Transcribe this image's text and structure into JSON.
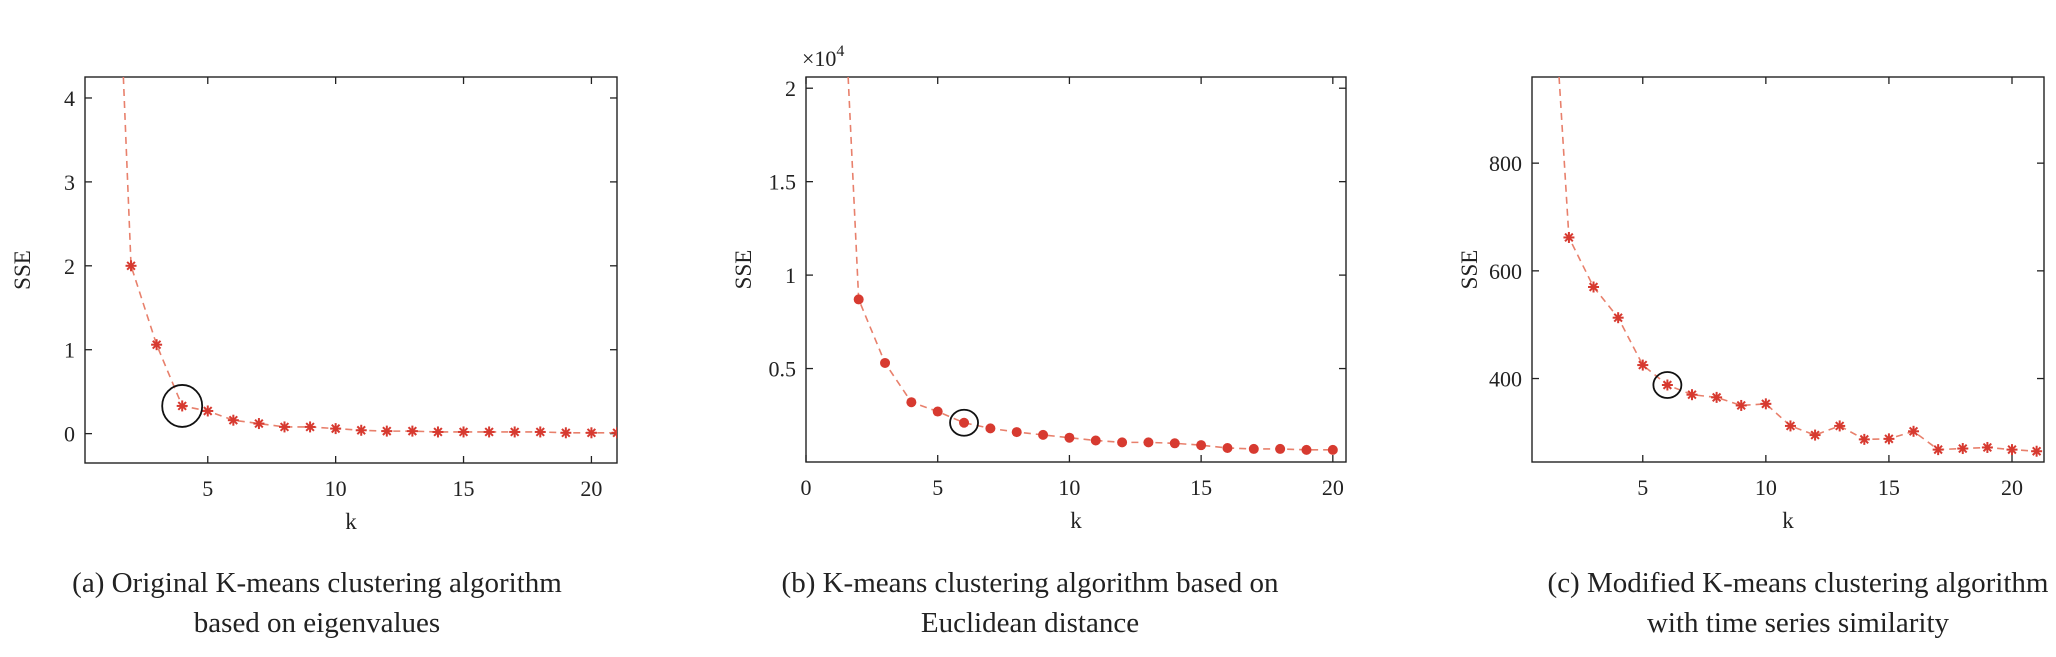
{
  "colors": {
    "series": "#d73a30",
    "line": "#e8806c",
    "axis": "#222222",
    "highlight": "#111111"
  },
  "chart_data": [
    {
      "type": "line",
      "marker": "asterisk",
      "xlabel": "k",
      "ylabel": "SSE",
      "caption_lines": [
        "(a) Original K-means clustering algorithm",
        "based on eigenvalues"
      ],
      "xlim": [
        0.2,
        21
      ],
      "ylim": [
        -0.35,
        4.25
      ],
      "xticks": [
        5,
        10,
        15,
        20
      ],
      "xtick_labels": [
        "5",
        "10",
        "15",
        "20"
      ],
      "yticks": [
        0,
        1,
        2,
        3,
        4
      ],
      "ytick_labels": [
        "0",
        "1",
        "2",
        "3",
        "4"
      ],
      "exponent_label": "",
      "exponent_power": "",
      "grid": false,
      "x": [
        1.7,
        2,
        3,
        4,
        5,
        6,
        7,
        8,
        9,
        10,
        11,
        12,
        13,
        14,
        15,
        16,
        17,
        18,
        19,
        20,
        21
      ],
      "y": [
        4.25,
        2.0,
        1.06,
        0.33,
        0.27,
        0.16,
        0.12,
        0.08,
        0.08,
        0.06,
        0.04,
        0.03,
        0.03,
        0.02,
        0.02,
        0.02,
        0.02,
        0.02,
        0.01,
        0.01,
        0.01
      ],
      "highlight_k": 4,
      "highlight_value": 0.33
    },
    {
      "type": "line",
      "marker": "dot",
      "xlabel": "k",
      "ylabel": "SSE",
      "caption_lines": [
        "(b) K-means clustering algorithm based on",
        "Euclidean distance"
      ],
      "xlim": [
        0,
        20.5
      ],
      "ylim": [
        0,
        2.06
      ],
      "xticks": [
        0,
        5,
        10,
        15,
        20
      ],
      "xtick_labels": [
        "0",
        "5",
        "10",
        "15",
        "20"
      ],
      "yticks": [
        0.5,
        1.0,
        1.5,
        2.0
      ],
      "ytick_labels": [
        "0.5",
        "1",
        "1.5",
        "2"
      ],
      "exponent_label": "×10",
      "exponent_power": "4",
      "grid": false,
      "x": [
        1.6,
        2,
        3,
        4,
        5,
        6,
        7,
        8,
        9,
        10,
        11,
        12,
        13,
        14,
        15,
        16,
        17,
        18,
        19,
        20
      ],
      "y": [
        2.06,
        0.87,
        0.53,
        0.32,
        0.27,
        0.21,
        0.18,
        0.16,
        0.145,
        0.13,
        0.115,
        0.105,
        0.105,
        0.1,
        0.09,
        0.075,
        0.07,
        0.07,
        0.065,
        0.065
      ],
      "highlight_k": 6,
      "highlight_value": 0.21
    },
    {
      "type": "line",
      "marker": "asterisk",
      "xlabel": "k",
      "ylabel": "SSE",
      "caption_lines": [
        "(c) Modified K-means clustering algorithm",
        "with time series similarity"
      ],
      "xlim": [
        0.5,
        21.3
      ],
      "ylim": [
        245,
        960
      ],
      "xticks": [
        5,
        10,
        15,
        20
      ],
      "xtick_labels": [
        "5",
        "10",
        "15",
        "20"
      ],
      "yticks": [
        400,
        600,
        800
      ],
      "ytick_labels": [
        "400",
        "600",
        "800"
      ],
      "exponent_label": "",
      "exponent_power": "",
      "grid": false,
      "x": [
        1.6,
        2,
        3,
        4,
        5,
        6,
        7,
        8,
        9,
        10,
        11,
        12,
        13,
        14,
        15,
        16,
        17,
        18,
        19,
        20,
        21
      ],
      "y": [
        960,
        662,
        570,
        513,
        425,
        388,
        370,
        365,
        350,
        353,
        312,
        295,
        312,
        287,
        288,
        302,
        268,
        270,
        272,
        268,
        265
      ],
      "highlight_k": 6,
      "highlight_value": 388
    }
  ]
}
